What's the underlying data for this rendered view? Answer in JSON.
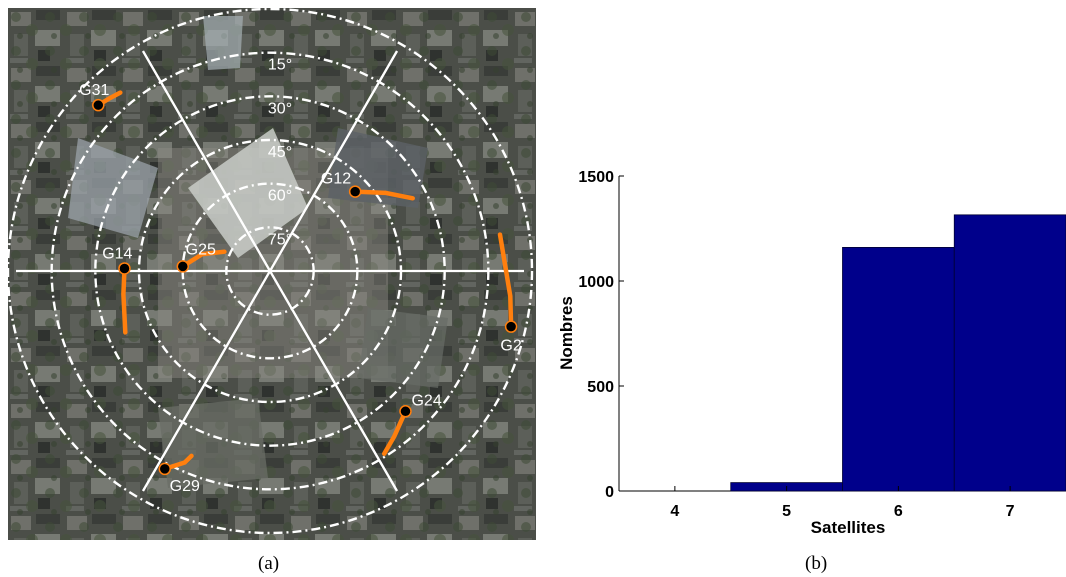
{
  "captions": {
    "a": "(a)",
    "b": "(b)"
  },
  "colors": {
    "bar": "#00008b",
    "track": "#ff7f0e",
    "grid": "#ffffff",
    "satellite_dot": "#000000"
  },
  "skyplot": {
    "elevation_labels": [
      "15°",
      "30°",
      "45°",
      "60°",
      "75°"
    ],
    "elevation_values": [
      15,
      30,
      45,
      60,
      75
    ],
    "satellites": [
      {
        "id": "G31",
        "azimuth": -46,
        "elevation": 8,
        "track": [
          [
            -46,
            8
          ],
          [
            -43,
            9
          ],
          [
            -40,
            10
          ]
        ]
      },
      {
        "id": "G12",
        "azimuth": 47,
        "elevation": 50,
        "track": [
          [
            47,
            50
          ],
          [
            56,
            42
          ],
          [
            63,
            35
          ]
        ]
      },
      {
        "id": "G14",
        "azimuth": -89,
        "elevation": 40,
        "track": [
          [
            -89,
            40
          ],
          [
            -99,
            39
          ],
          [
            -113,
            36
          ]
        ]
      },
      {
        "id": "G25",
        "azimuth": -87,
        "elevation": 60,
        "track": [
          [
            -87,
            60
          ],
          [
            -76,
            66
          ],
          [
            -67,
            73
          ]
        ]
      },
      {
        "id": "G2",
        "azimuth": 103,
        "elevation": 5,
        "track": [
          [
            103,
            5
          ],
          [
            96,
            7
          ],
          [
            81,
            10
          ]
        ]
      },
      {
        "id": "G24",
        "azimuth": 136,
        "elevation": 23,
        "track": [
          [
            136,
            23
          ],
          [
            143,
            19
          ],
          [
            148,
            16
          ]
        ]
      },
      {
        "id": "G29",
        "azimuth": -152,
        "elevation": 13,
        "track": [
          [
            -152,
            13
          ],
          [
            -156,
            18
          ],
          [
            -157,
            21
          ]
        ]
      }
    ]
  },
  "chart_data": {
    "type": "bar",
    "categories": [
      "4",
      "5",
      "6",
      "7"
    ],
    "values": [
      0,
      40,
      1160,
      1315
    ],
    "xlabel": "Satellites",
    "ylabel": "Nombres",
    "ylim": [
      0,
      1500
    ],
    "yticks": [
      "0",
      "500",
      "1000",
      "1500"
    ],
    "grid": false
  }
}
